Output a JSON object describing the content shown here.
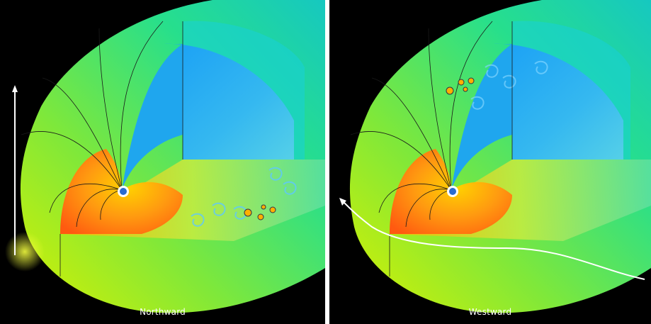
{
  "panels": [
    {
      "caption": "Northward"
    },
    {
      "caption": "Westward"
    }
  ],
  "colors": {
    "background": "#000000",
    "outer_shell": "#3be08a",
    "inner_shell_blue": "#2aa6f0",
    "core_orange": "#ff7a1a",
    "core_yellow": "#ffd400",
    "field_lines": "#1a1a1a",
    "arrow": "#ffffff"
  }
}
